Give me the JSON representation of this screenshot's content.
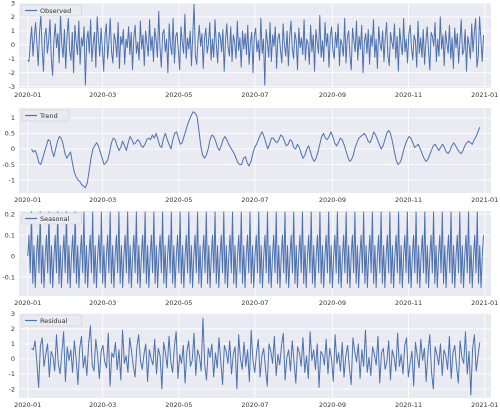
{
  "chart_data": [
    {
      "type": "line",
      "legend": "Observed",
      "legend_placement": "top-left",
      "color": "#4c72b0",
      "grid": true,
      "xlim": [
        "2019-12-25",
        "2021-01-06"
      ],
      "x_ticks": [
        "2020-01",
        "2020-03",
        "2020-05",
        "2020-07",
        "2020-09",
        "2020-11",
        "2021-01"
      ],
      "ylim": [
        -3.1,
        3.0
      ],
      "y_ticks": [
        -3,
        -2,
        -1,
        0,
        1,
        2,
        3
      ],
      "x_start": "2020-01-01",
      "x_end": "2020-12-31",
      "values": [
        -1.1,
        -1.2,
        0.2,
        1.3,
        -0.8,
        0.5,
        1.6,
        0.1,
        -1.5,
        0.9,
        2.1,
        -0.3,
        -1.9,
        0.7,
        1.2,
        -0.6,
        0.3,
        1.8,
        -1.0,
        -2.2,
        0.4,
        1.5,
        -0.2,
        0.8,
        -1.3,
        2.2,
        0.0,
        -0.9,
        1.1,
        -1.7,
        0.6,
        1.9,
        -0.4,
        -1.1,
        0.9,
        -2.0,
        1.4,
        0.2,
        -0.7,
        1.7,
        -1.4,
        0.5,
        -0.1,
        1.3,
        -2.9,
        0.3,
        1.0,
        -0.6,
        1.8,
        -1.2,
        0.1,
        0.9,
        -1.6,
        2.0,
        0.4,
        -0.8,
        1.2,
        -0.3,
        -1.9,
        0.7,
        1.5,
        -1.0,
        0.2,
        1.9,
        -0.5,
        -1.3,
        0.8,
        0.3,
        -0.9,
        1.6,
        -1.7,
        0.6,
        0.0,
        1.1,
        -1.4,
        0.4,
        -0.2,
        1.3,
        -0.7,
        0.9,
        -1.8,
        0.5,
        1.4,
        -0.6,
        0.2,
        -1.1,
        1.7,
        -0.3,
        0.7,
        -1.5,
        1.0,
        0.1,
        -0.8,
        1.8,
        -0.4,
        0.6,
        -1.2,
        1.2,
        0.3,
        -0.9,
        2.4,
        -0.2,
        -1.6,
        0.8,
        1.1,
        -0.5,
        0.4,
        -2.0,
        1.5,
        0.0,
        -0.7,
        1.9,
        -1.3,
        0.6,
        0.9,
        -0.4,
        -1.8,
        1.3,
        0.2,
        -0.6,
        2.2,
        -1.0,
        0.5,
        -0.3,
        1.0,
        -1.5,
        0.7,
        2.9,
        -0.8,
        -1.4,
        0.3,
        1.4,
        -0.1,
        0.8,
        -1.7,
        0.5,
        1.2,
        -0.6,
        0.1,
        1.6,
        -1.1,
        0.4,
        -0.9,
        1.8,
        0.0,
        -1.3,
        0.9,
        0.6,
        -0.5,
        1.1,
        -1.9,
        0.3,
        1.5,
        -0.2,
        -0.8,
        1.3,
        -1.2,
        0.7,
        0.2,
        -1.0,
        1.7,
        -0.4,
        0.5,
        -1.6,
        1.0,
        -0.3,
        0.8,
        -0.7,
        1.4,
        -1.4,
        0.1,
        0.9,
        -2.0,
        0.6,
        1.2,
        -0.5,
        0.3,
        -1.1,
        1.9,
        -0.6,
        0.4,
        -2.9,
        1.1,
        0.2,
        -0.9,
        1.6,
        -1.2,
        0.7,
        -0.1,
        1.3,
        -1.7,
        0.5,
        0.8,
        -0.4,
        -1.3,
        1.5,
        0.0,
        -0.8,
        1.0,
        -1.5,
        0.6,
        1.7,
        -0.3,
        -1.0,
        0.9,
        0.3,
        -1.8,
        1.2,
        -0.2,
        0.5,
        -0.7,
        1.8,
        -1.1,
        0.4,
        0.1,
        -1.4,
        1.4,
        -0.5,
        0.7,
        -1.9,
        1.1,
        0.2,
        -0.6,
        2.1,
        -0.9,
        0.3,
        -1.2,
        1.6,
        -0.1,
        0.8,
        -1.6,
        0.6,
        1.3,
        -0.4,
        -1.0,
        0.9,
        -0.2,
        1.5,
        -1.5,
        0.4,
        0.0,
        -0.8,
        1.9,
        -1.3,
        0.5,
        1.0,
        -0.7,
        -1.8,
        1.2,
        0.3,
        -0.5,
        1.7,
        -1.1,
        0.6,
        -0.3,
        1.4,
        -2.0,
        0.2,
        0.8,
        -0.6,
        1.1,
        -1.4,
        0.7,
        -0.1,
        1.8,
        -0.9,
        0.4,
        -1.7,
        1.3,
        0.1,
        -0.4,
        1.0,
        -1.2,
        0.5,
        1.6,
        -0.8,
        -1.5,
        0.9,
        0.2,
        -0.3,
        1.5,
        -1.0,
        0.6,
        -1.9,
        1.2,
        0.0,
        -0.7,
        1.9,
        -0.5,
        0.4,
        -1.3,
        0.8,
        1.4,
        -0.2,
        -1.1,
        0.7,
        0.3,
        -1.6,
        1.7,
        -0.6,
        0.5,
        -0.9,
        1.1,
        -1.4,
        0.2,
        1.3,
        -0.4,
        -1.8,
        0.9,
        0.6,
        -0.1,
        1.6,
        -1.2,
        0.4,
        -0.8,
        2.0,
        -0.3,
        0.7,
        -1.5,
        1.0,
        0.1,
        -0.6,
        1.4,
        -1.0,
        0.5,
        -1.7,
        1.2,
        -0.2,
        0.8,
        -1.3,
        0.3,
        1.8,
        -0.7,
        -0.4,
        1.1,
        -1.9,
        0.6,
        0.0,
        -1.0,
        1.5,
        -0.5,
        0.9,
        1.9,
        -1.6,
        -0.8,
        2.0,
        0.4,
        -1.2,
        0.7
      ]
    },
    {
      "type": "line",
      "legend": "Trend",
      "legend_placement": "top-left",
      "color": "#4c72b0",
      "grid": true,
      "xlim": [
        "2019-12-25",
        "2021-01-06"
      ],
      "x_ticks": [
        "2020-01",
        "2020-03",
        "2020-05",
        "2020-07",
        "2020-09",
        "2020-11",
        "2021-01"
      ],
      "ylim": [
        -1.42,
        1.32
      ],
      "y_ticks": [
        -1.0,
        -0.5,
        0.0,
        0.5,
        1.0
      ],
      "x_start": "2020-01-04",
      "x_end": "2020-12-28",
      "values": [
        0.0,
        -0.1,
        -0.05,
        -0.2,
        -0.45,
        -0.5,
        -0.3,
        -0.1,
        0.1,
        0.3,
        0.25,
        -0.05,
        -0.25,
        0.0,
        0.25,
        0.4,
        0.35,
        0.15,
        -0.15,
        -0.3,
        -0.2,
        -0.1,
        -0.45,
        -0.75,
        -0.9,
        -1.0,
        -1.05,
        -1.15,
        -1.2,
        -1.25,
        -1.1,
        -0.7,
        -0.3,
        0.0,
        0.1,
        0.2,
        0.1,
        -0.1,
        -0.3,
        -0.5,
        -0.45,
        -0.35,
        -0.1,
        0.2,
        0.35,
        0.3,
        0.1,
        -0.05,
        0.05,
        0.25,
        0.1,
        -0.05,
        0.2,
        0.4,
        0.3,
        0.15,
        0.2,
        0.3,
        0.25,
        0.1,
        0.05,
        0.15,
        0.3,
        0.35,
        0.3,
        0.45,
        0.35,
        0.5,
        0.3,
        0.1,
        0.05,
        0.35,
        0.5,
        0.3,
        0.15,
        0.0,
        0.3,
        0.5,
        0.55,
        0.35,
        0.15,
        0.2,
        0.4,
        0.6,
        0.8,
        0.95,
        1.1,
        1.2,
        1.15,
        1.05,
        0.6,
        0.1,
        -0.2,
        -0.3,
        -0.2,
        0.0,
        0.3,
        0.45,
        0.4,
        0.25,
        0.05,
        -0.05,
        0.1,
        0.3,
        0.4,
        0.3,
        0.15,
        0.05,
        -0.05,
        -0.15,
        -0.3,
        -0.45,
        -0.5,
        -0.5,
        -0.3,
        -0.25,
        -0.45,
        -0.55,
        -0.4,
        -0.15,
        0.05,
        0.15,
        0.3,
        0.45,
        0.55,
        0.4,
        0.2,
        0.0,
        0.15,
        0.35,
        0.35,
        0.25,
        0.2,
        0.3,
        0.45,
        0.4,
        0.25,
        0.1,
        0.15,
        0.3,
        0.25,
        0.05,
        0.0,
        0.15,
        0.05,
        -0.15,
        -0.3,
        -0.2,
        0.0,
        0.1,
        -0.1,
        -0.3,
        -0.4,
        -0.3,
        -0.1,
        0.15,
        0.4,
        0.5,
        0.35,
        0.3,
        0.4,
        0.55,
        0.4,
        0.2,
        0.1,
        0.2,
        0.35,
        0.3,
        0.15,
        -0.05,
        -0.25,
        -0.4,
        -0.35,
        -0.2,
        0.05,
        0.2,
        0.35,
        0.4,
        0.45,
        0.5,
        0.4,
        0.25,
        0.2,
        0.35,
        0.55,
        0.45,
        0.3,
        0.15,
        0.0,
        0.1,
        0.3,
        0.5,
        0.6,
        0.5,
        0.25,
        -0.05,
        -0.35,
        -0.5,
        -0.45,
        -0.3,
        -0.05,
        0.15,
        0.3,
        0.4,
        0.35,
        0.2,
        0.05,
        0.1,
        0.15,
        0.0,
        -0.15,
        -0.3,
        -0.4,
        -0.35,
        -0.2,
        -0.05,
        0.1,
        0.15,
        0.05,
        -0.05,
        0.05,
        0.15,
        0.05,
        -0.1,
        -0.15,
        -0.05,
        0.1,
        0.2,
        0.1,
        0.0,
        -0.1,
        -0.15,
        -0.05,
        0.1,
        0.2,
        0.25,
        0.2,
        0.15,
        0.3,
        0.4,
        0.55,
        0.7
      ]
    },
    {
      "type": "line",
      "legend": "Seasonal",
      "legend_placement": "top-left",
      "color": "#4c72b0",
      "grid": true,
      "xlim": [
        "2019-12-25",
        "2021-01-06"
      ],
      "x_ticks": [
        "2020-01",
        "2020-03",
        "2020-05",
        "2020-07",
        "2020-09",
        "2020-11",
        "2021-01"
      ],
      "ylim": [
        -0.19,
        0.215
      ],
      "y_ticks": [
        -0.1,
        0.0,
        0.1,
        0.2
      ],
      "x_start": "2020-01-01",
      "x_end": "2020-12-31",
      "period": 7,
      "cycle_values": [
        0.0,
        0.1,
        -0.08,
        0.21,
        -0.13,
        0.05,
        -0.15
      ]
    },
    {
      "type": "line",
      "legend": "Residual",
      "legend_placement": "top-left",
      "color": "#4c72b0",
      "grid": true,
      "xlim": [
        "2019-12-25",
        "2021-01-06"
      ],
      "x_ticks": [
        "2020-01",
        "2020-03",
        "2020-05",
        "2020-07",
        "2020-09",
        "2020-11",
        "2021-01"
      ],
      "ylim": [
        -2.6,
        3.05
      ],
      "y_ticks": [
        -2,
        -1,
        0,
        1,
        2,
        3
      ],
      "x_start": "2020-01-04",
      "x_end": "2020-12-28",
      "values": [
        0.7,
        0.6,
        1.2,
        -0.2,
        -1.9,
        0.9,
        1.4,
        -0.5,
        0.3,
        1.0,
        -1.2,
        0.5,
        0.2,
        -0.8,
        1.6,
        -0.3,
        -1.0,
        0.4,
        1.8,
        -1.5,
        0.8,
        -0.1,
        0.6,
        -0.9,
        1.2,
        0.0,
        -1.7,
        0.7,
        1.5,
        -0.6,
        0.2,
        -1.1,
        1.0,
        2.2,
        -0.4,
        -0.8,
        1.3,
        0.3,
        -1.3,
        0.5,
        0.9,
        -0.2,
        -0.6,
        1.7,
        -1.8,
        0.4,
        0.1,
        1.1,
        -0.7,
        0.6,
        -1.4,
        1.9,
        -0.3,
        0.2,
        -0.9,
        1.4,
        0.5,
        -0.5,
        -1.2,
        0.8,
        1.6,
        -0.1,
        -0.7,
        0.3,
        1.0,
        -1.5,
        0.6,
        0.0,
        -0.4,
        1.3,
        -1.0,
        0.7,
        0.2,
        -2.0,
        1.1,
        0.4,
        -0.6,
        1.5,
        -0.2,
        -0.9,
        0.8,
        1.8,
        -1.3,
        0.3,
        -0.3,
        0.9,
        -1.6,
        0.5,
        1.2,
        -0.5,
        -0.1,
        1.7,
        -1.1,
        0.6,
        0.2,
        -0.8,
        2.7,
        -0.4,
        -1.4,
        0.7,
        0.1,
        1.0,
        -1.2,
        0.4,
        -0.6,
        1.4,
        -0.2,
        -1.7,
        0.9,
        0.5,
        -0.3,
        1.2,
        -1.0,
        0.3,
        0.8,
        -2.0,
        1.6,
        0.0,
        -0.7,
        1.1,
        -0.5,
        0.6,
        -1.5,
        1.9,
        -0.1,
        -0.9,
        0.4,
        1.3,
        -1.2,
        0.2,
        0.7,
        -0.6,
        -1.8,
        1.0,
        0.5,
        -0.3,
        1.5,
        -1.1,
        0.3,
        -0.4,
        0.9,
        1.7,
        -1.4,
        0.1,
        0.6,
        -0.8,
        1.2,
        -0.2,
        -1.6,
        0.8,
        0.4,
        -0.5,
        1.4,
        -0.9,
        0.2,
        -1.3,
        1.8,
        -0.1,
        0.6,
        -0.7,
        1.0,
        -1.9,
        0.5,
        0.3,
        -0.4,
        1.3,
        -1.0,
        0.7,
        0.0,
        -1.5,
        1.6,
        -0.3,
        0.4,
        -0.8,
        1.1,
        -1.2,
        0.2,
        0.9,
        -0.6,
        -1.7,
        1.4,
        0.5,
        -0.2,
        1.0,
        -1.3,
        0.6,
        -0.5,
        1.9,
        -0.9,
        0.1,
        -1.1,
        0.8,
        0.3,
        -0.4,
        1.5,
        -1.6,
        0.4,
        0.7,
        -0.7,
        -0.2,
        1.2,
        -1.4,
        0.6,
        0.1,
        -0.8,
        1.7,
        -0.5,
        0.3,
        -1.0,
        0.9,
        1.4,
        -1.2,
        -0.3,
        0.5,
        -1.8,
        1.1,
        0.2,
        -0.6,
        1.3,
        -0.1,
        0.7,
        -1.5,
        0.4,
        1.6,
        -0.9,
        -2.0,
        0.8,
        0.3,
        -0.4,
        1.0,
        -1.1,
        0.6,
        0.2,
        -0.7,
        1.5,
        -1.3,
        0.4,
        0.9,
        -0.5,
        -1.6,
        1.2,
        0.1,
        -0.3,
        1.8,
        -1.0,
        0.5,
        -2.4,
        0.7,
        1.6,
        -0.8,
        0.2,
        1.1
      ]
    }
  ]
}
